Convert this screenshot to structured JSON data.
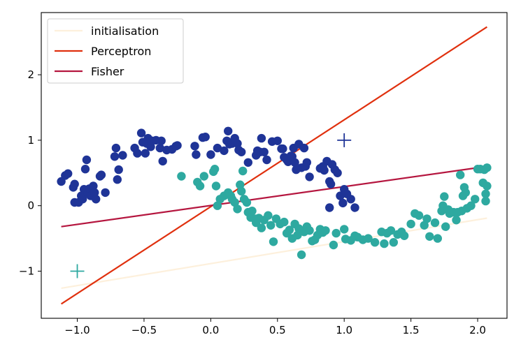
{
  "chart_data": {
    "type": "scatter",
    "title": "",
    "xlabel": "",
    "ylabel": "",
    "xlim": [
      -1.27,
      2.22
    ],
    "ylim": [
      -1.72,
      2.95
    ],
    "grid": false,
    "legend_placement": "top-left",
    "x_ticks": [
      -1.0,
      -0.5,
      0.0,
      0.5,
      1.0,
      1.5,
      2.0
    ],
    "x_tick_labels": [
      "−1.0",
      "−0.5",
      "0.0",
      "0.5",
      "1.0",
      "1.5",
      "2.0"
    ],
    "y_ticks": [
      -1,
      0,
      1,
      2
    ],
    "y_tick_labels": [
      "−1",
      "0",
      "1",
      "2"
    ],
    "lines": [
      {
        "name": "initialisation",
        "color": "#fdf0dc",
        "x": [
          -1.12,
          2.07
        ],
        "y": [
          -1.26,
          -0.19
        ]
      },
      {
        "name": "Perceptron",
        "color": "#e0300e",
        "x": [
          -1.12,
          2.07
        ],
        "y": [
          -1.5,
          2.73
        ]
      },
      {
        "name": "Fisher",
        "color": "#b5163f",
        "x": [
          -1.12,
          2.07
        ],
        "y": [
          -0.32,
          0.6
        ]
      }
    ],
    "scatter_series": [
      {
        "color": "#1f3497",
        "points": [
          [
            -1.12,
            0.37
          ],
          [
            -1.09,
            0.46
          ],
          [
            -1.07,
            0.49
          ],
          [
            -1.03,
            0.28
          ],
          [
            -1.02,
            0.33
          ],
          [
            -1.02,
            0.05
          ],
          [
            -0.99,
            0.05
          ],
          [
            -0.97,
            0.15
          ],
          [
            -0.96,
            0.1
          ],
          [
            -0.95,
            0.25
          ],
          [
            -0.94,
            0.56
          ],
          [
            -0.93,
            0.7
          ],
          [
            -0.92,
            0.19
          ],
          [
            -0.91,
            0.26
          ],
          [
            -0.9,
            0.15
          ],
          [
            -0.88,
            0.3
          ],
          [
            -0.87,
            0.2
          ],
          [
            -0.86,
            0.1
          ],
          [
            -0.83,
            0.45
          ],
          [
            -0.82,
            0.47
          ],
          [
            -0.79,
            0.2
          ],
          [
            -0.72,
            0.75
          ],
          [
            -0.71,
            0.88
          ],
          [
            -0.7,
            0.4
          ],
          [
            -0.69,
            0.55
          ],
          [
            -0.66,
            0.77
          ],
          [
            -0.57,
            0.88
          ],
          [
            -0.55,
            0.8
          ],
          [
            -0.52,
            1.11
          ],
          [
            -0.51,
            0.97
          ],
          [
            -0.49,
            0.8
          ],
          [
            -0.48,
            0.95
          ],
          [
            -0.47,
            1.03
          ],
          [
            -0.45,
            0.9
          ],
          [
            -0.44,
            0.99
          ],
          [
            -0.41,
            1.0
          ],
          [
            -0.38,
            0.88
          ],
          [
            -0.37,
            0.99
          ],
          [
            -0.36,
            0.68
          ],
          [
            -0.33,
            0.85
          ],
          [
            -0.29,
            0.86
          ],
          [
            -0.26,
            0.91
          ],
          [
            -0.25,
            0.92
          ],
          [
            -0.12,
            0.91
          ],
          [
            -0.11,
            0.78
          ],
          [
            -0.06,
            1.04
          ],
          [
            -0.04,
            1.05
          ],
          [
            0.0,
            0.78
          ],
          [
            0.05,
            0.88
          ],
          [
            0.1,
            0.84
          ],
          [
            0.12,
            0.99
          ],
          [
            0.13,
            1.14
          ],
          [
            0.14,
            0.94
          ],
          [
            0.16,
            0.95
          ],
          [
            0.18,
            1.03
          ],
          [
            0.2,
            0.95
          ],
          [
            0.21,
            0.85
          ],
          [
            0.23,
            0.82
          ],
          [
            0.28,
            0.66
          ],
          [
            0.34,
            0.77
          ],
          [
            0.35,
            0.84
          ],
          [
            0.37,
            0.82
          ],
          [
            0.38,
            1.03
          ],
          [
            0.4,
            0.82
          ],
          [
            0.42,
            0.7
          ],
          [
            0.46,
            0.98
          ],
          [
            0.5,
            0.99
          ],
          [
            0.53,
            0.87
          ],
          [
            0.54,
            0.87
          ],
          [
            0.55,
            0.74
          ],
          [
            0.57,
            0.7
          ],
          [
            0.58,
            0.67
          ],
          [
            0.6,
            0.76
          ],
          [
            0.61,
            0.75
          ],
          [
            0.62,
            0.88
          ],
          [
            0.63,
            0.66
          ],
          [
            0.64,
            0.55
          ],
          [
            0.66,
            0.94
          ],
          [
            0.68,
            0.58
          ],
          [
            0.7,
            0.88
          ],
          [
            0.71,
            0.6
          ],
          [
            0.72,
            0.66
          ],
          [
            0.74,
            0.44
          ],
          [
            0.82,
            0.57
          ],
          [
            0.84,
            0.6
          ],
          [
            0.85,
            0.54
          ],
          [
            0.87,
            0.68
          ],
          [
            0.89,
            0.37
          ],
          [
            0.9,
            0.33
          ],
          [
            0.91,
            0.63
          ],
          [
            0.93,
            0.55
          ],
          [
            0.95,
            0.5
          ],
          [
            0.97,
            0.15
          ],
          [
            0.99,
            0.04
          ],
          [
            1.0,
            0.25
          ],
          [
            1.02,
            0.18
          ],
          [
            1.05,
            0.1
          ],
          [
            1.08,
            -0.03
          ],
          [
            0.89,
            -0.03
          ]
        ]
      },
      {
        "color": "#2ea9a0",
        "points": [
          [
            -0.22,
            0.45
          ],
          [
            -0.1,
            0.36
          ],
          [
            -0.08,
            0.3
          ],
          [
            -0.05,
            0.45
          ],
          [
            0.02,
            0.52
          ],
          [
            0.03,
            0.56
          ],
          [
            0.04,
            0.3
          ],
          [
            0.05,
            0.0
          ],
          [
            0.07,
            0.1
          ],
          [
            0.1,
            0.15
          ],
          [
            0.13,
            0.2
          ],
          [
            0.15,
            0.15
          ],
          [
            0.16,
            0.1
          ],
          [
            0.18,
            0.05
          ],
          [
            0.2,
            -0.05
          ],
          [
            0.22,
            0.32
          ],
          [
            0.23,
            0.22
          ],
          [
            0.24,
            0.53
          ],
          [
            0.25,
            0.1
          ],
          [
            0.27,
            0.05
          ],
          [
            0.28,
            -0.1
          ],
          [
            0.3,
            -0.18
          ],
          [
            0.31,
            -0.08
          ],
          [
            0.33,
            -0.2
          ],
          [
            0.34,
            -0.26
          ],
          [
            0.36,
            -0.19
          ],
          [
            0.38,
            -0.34
          ],
          [
            0.4,
            -0.22
          ],
          [
            0.43,
            -0.15
          ],
          [
            0.45,
            -0.3
          ],
          [
            0.47,
            -0.55
          ],
          [
            0.49,
            -0.2
          ],
          [
            0.52,
            -0.28
          ],
          [
            0.55,
            -0.25
          ],
          [
            0.57,
            -0.42
          ],
          [
            0.59,
            -0.37
          ],
          [
            0.61,
            -0.5
          ],
          [
            0.63,
            -0.28
          ],
          [
            0.65,
            -0.45
          ],
          [
            0.66,
            -0.35
          ],
          [
            0.68,
            -0.75
          ],
          [
            0.7,
            -0.4
          ],
          [
            0.72,
            -0.32
          ],
          [
            0.74,
            -0.38
          ],
          [
            0.76,
            -0.54
          ],
          [
            0.78,
            -0.52
          ],
          [
            0.8,
            -0.45
          ],
          [
            0.82,
            -0.36
          ],
          [
            0.84,
            -0.41
          ],
          [
            0.86,
            -0.38
          ],
          [
            0.92,
            -0.6
          ],
          [
            0.94,
            -0.42
          ],
          [
            1.0,
            -0.36
          ],
          [
            1.01,
            -0.51
          ],
          [
            1.05,
            -0.53
          ],
          [
            1.08,
            -0.46
          ],
          [
            1.1,
            -0.48
          ],
          [
            1.14,
            -0.52
          ],
          [
            1.18,
            -0.5
          ],
          [
            1.23,
            -0.56
          ],
          [
            1.28,
            -0.4
          ],
          [
            1.3,
            -0.58
          ],
          [
            1.32,
            -0.42
          ],
          [
            1.35,
            -0.38
          ],
          [
            1.37,
            -0.56
          ],
          [
            1.4,
            -0.44
          ],
          [
            1.43,
            -0.4
          ],
          [
            1.45,
            -0.46
          ],
          [
            1.5,
            -0.28
          ],
          [
            1.53,
            -0.12
          ],
          [
            1.56,
            -0.15
          ],
          [
            1.6,
            -0.3
          ],
          [
            1.62,
            -0.2
          ],
          [
            1.64,
            -0.47
          ],
          [
            1.68,
            -0.26
          ],
          [
            1.7,
            -0.5
          ],
          [
            1.73,
            -0.08
          ],
          [
            1.74,
            0.0
          ],
          [
            1.75,
            0.14
          ],
          [
            1.76,
            -0.32
          ],
          [
            1.78,
            -0.06
          ],
          [
            1.79,
            -0.12
          ],
          [
            1.82,
            -0.1
          ],
          [
            1.84,
            -0.22
          ],
          [
            1.85,
            -0.1
          ],
          [
            1.87,
            0.47
          ],
          [
            1.88,
            -0.08
          ],
          [
            1.89,
            0.15
          ],
          [
            1.9,
            0.28
          ],
          [
            1.91,
            0.2
          ],
          [
            1.92,
            -0.04
          ],
          [
            1.95,
            0.0
          ],
          [
            1.98,
            0.1
          ],
          [
            2.0,
            0.56
          ],
          [
            2.02,
            0.56
          ],
          [
            2.04,
            0.35
          ],
          [
            2.05,
            0.55
          ],
          [
            2.06,
            0.18
          ],
          [
            2.07,
            0.3
          ],
          [
            2.07,
            0.58
          ],
          [
            2.06,
            0.07
          ]
        ]
      }
    ],
    "crosses": [
      {
        "x": 1.0,
        "y": 1.0,
        "color": "#1f3497"
      },
      {
        "x": -1.0,
        "y": -1.0,
        "color": "#2ea9a0"
      }
    ]
  }
}
